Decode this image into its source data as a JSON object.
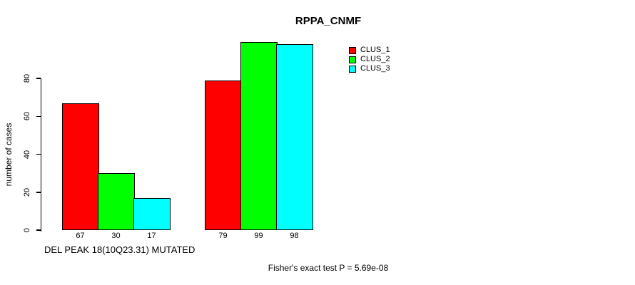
{
  "title": "RPPA_CNMF",
  "x_axis_label": "DEL PEAK 18(10Q23.31) MUTATED",
  "y_axis_label": "number of cases",
  "footer": "Fisher's exact test P = 5.69e-08",
  "legend": {
    "position": "right",
    "items": [
      {
        "label": "CLUS_1",
        "color": "#ff0000"
      },
      {
        "label": "CLUS_2",
        "color": "#00ff00"
      },
      {
        "label": "CLUS_3",
        "color": "#00ffff"
      }
    ]
  },
  "chart_data": {
    "type": "bar",
    "title": "RPPA_CNMF",
    "xlabel": "DEL PEAK 18(10Q23.31) MUTATED",
    "ylabel": "number of cases",
    "ylim": [
      0,
      80
    ],
    "yticks": [
      0,
      20,
      40,
      60,
      80
    ],
    "grid": false,
    "legend_position": "right",
    "series": [
      {
        "name": "CLUS_1",
        "color": "#ff0000",
        "values": [
          67,
          79
        ]
      },
      {
        "name": "CLUS_2",
        "color": "#00ff00",
        "values": [
          30,
          99
        ]
      },
      {
        "name": "CLUS_3",
        "color": "#00ffff",
        "values": [
          17,
          98
        ]
      }
    ],
    "bar_value_labels": [
      [
        67,
        30,
        17
      ],
      [
        79,
        99,
        98
      ]
    ],
    "annotation": "Fisher's exact test P = 5.69e-08"
  }
}
